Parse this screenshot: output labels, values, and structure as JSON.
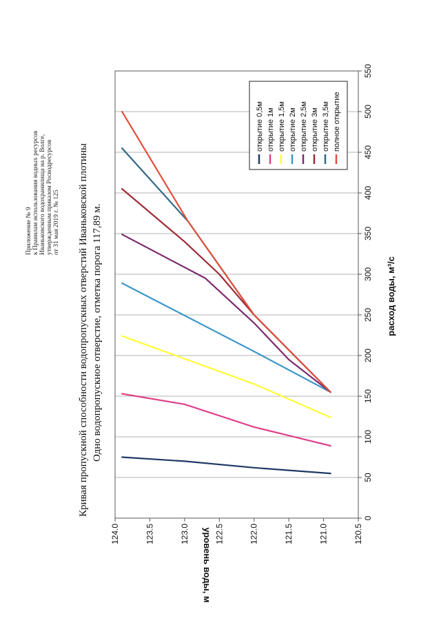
{
  "header": {
    "lines": [
      "Приложение № 9",
      "к Правилам использования водных ресурсов",
      "Иваньковского водохранилища на р. Волге,",
      "утвержденным приказом Росводресурсов",
      "от 31 мая 2019 г. № 125"
    ]
  },
  "colors": {
    "series": [
      "#1f3864",
      "#e0418a",
      "#ffff33",
      "#3c96c8",
      "#7a2a6e",
      "#9e2a36",
      "#2f6884",
      "#e0503a"
    ]
  },
  "chart_data": {
    "type": "line",
    "title": "Кривая пропускной способности водопропускных отверстий Иваньковской плотины",
    "subtitle": "Одно водопропускное отверстие, отметка порога 117,89 м.",
    "xlabel": "расход воды, м³/с",
    "ylabel": "уровень воды, м",
    "xlim": [
      0,
      550
    ],
    "ylim": [
      120.5,
      124.0
    ],
    "x_ticks": [
      "0",
      "50",
      "100",
      "150",
      "200",
      "250",
      "300",
      "350",
      "400",
      "450",
      "500",
      "550"
    ],
    "y_ticks": [
      "120.5",
      "121.0",
      "121.5",
      "122.0",
      "122.5",
      "123.0",
      "123.5",
      "124.0"
    ],
    "grid": "vertical",
    "legend_position": "top-right",
    "series": [
      {
        "name": "открытие 0,5м",
        "points": [
          [
            55,
            120.9
          ],
          [
            62,
            122.0
          ],
          [
            70,
            123.0
          ],
          [
            75,
            123.9
          ]
        ]
      },
      {
        "name": "открытие 1м",
        "points": [
          [
            89,
            120.9
          ],
          [
            112,
            122.0
          ],
          [
            140,
            123.0
          ],
          [
            153,
            123.9
          ]
        ]
      },
      {
        "name": "открытие 1,5м",
        "points": [
          [
            124,
            120.9
          ],
          [
            165,
            122.0
          ],
          [
            224,
            123.9
          ]
        ]
      },
      {
        "name": "открытие 2м",
        "points": [
          [
            155,
            120.9
          ],
          [
            205,
            122.0
          ],
          [
            289,
            123.9
          ]
        ]
      },
      {
        "name": "открытие 2,5м",
        "points": [
          [
            155,
            120.9
          ],
          [
            195,
            121.5
          ],
          [
            240,
            122.0
          ],
          [
            295,
            122.7
          ],
          [
            349,
            123.9
          ]
        ]
      },
      {
        "name": "открытие 3м",
        "points": [
          [
            155,
            120.9
          ],
          [
            250,
            122.0
          ],
          [
            300,
            122.5
          ],
          [
            340,
            123.0
          ],
          [
            405,
            123.9
          ]
        ]
      },
      {
        "name": "открытие 3,5м",
        "points": [
          [
            155,
            120.9
          ],
          [
            250,
            122.0
          ],
          [
            365,
            122.95
          ],
          [
            455,
            123.9
          ]
        ]
      },
      {
        "name": "полное открытие",
        "points": [
          [
            155,
            120.9
          ],
          [
            250,
            122.0
          ],
          [
            365,
            122.95
          ],
          [
            500,
            123.9
          ]
        ]
      }
    ]
  }
}
